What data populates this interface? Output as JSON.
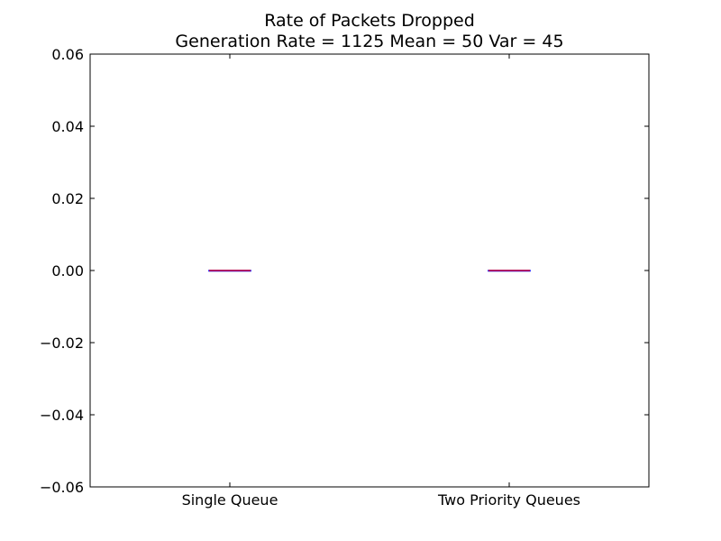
{
  "chart_data": {
    "type": "box",
    "title": "Rate of Packets Dropped",
    "subtitle": "Generation Rate = 1125 Mean = 50 Var = 45",
    "xlabel": "",
    "ylabel": "",
    "categories": [
      "Single Queue",
      "Two Priority Queues"
    ],
    "boxes": [
      {
        "category": "Single Queue",
        "min": 0.0,
        "q1": 0.0,
        "median": 0.0,
        "q3": 0.0,
        "max": 0.0
      },
      {
        "category": "Two Priority Queues",
        "min": 0.0,
        "q1": 0.0,
        "median": 0.0,
        "q3": 0.0,
        "max": 0.0
      }
    ],
    "ylim": [
      -0.06,
      0.06
    ],
    "yticks": [
      -0.06,
      -0.04,
      -0.02,
      0.0,
      0.02,
      0.04,
      0.06
    ],
    "ytick_labels": [
      "−0.06",
      "−0.04",
      "−0.02",
      "0.00",
      "0.02",
      "0.04",
      "0.06"
    ],
    "grid": false,
    "colors": {
      "box": "#0000ff",
      "median": "#ff0000",
      "axes": "#000000"
    }
  }
}
